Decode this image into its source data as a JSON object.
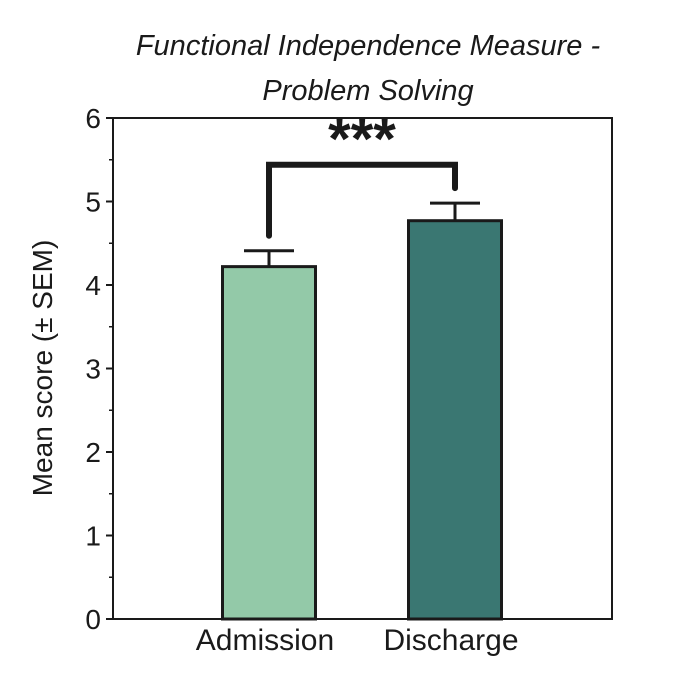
{
  "chart_data": {
    "type": "bar",
    "title_lines": [
      "Functional Independence Measure -",
      "Problem Solving"
    ],
    "xlabel": "",
    "ylabel": "Mean score (± SEM)",
    "categories": [
      "Admission",
      "Discharge"
    ],
    "values": [
      4.22,
      4.77
    ],
    "errors": [
      0.19,
      0.21
    ],
    "ylim": [
      0,
      6
    ],
    "yticks": [
      "0",
      "1",
      "2",
      "3",
      "4",
      "5",
      "6"
    ],
    "minor_tick_step": 0.5,
    "grid": false,
    "colors": [
      "#93c9a8",
      "#3a7772"
    ],
    "significance": {
      "label": "***",
      "between": [
        "Admission",
        "Discharge"
      ],
      "level": 5.5
    }
  }
}
